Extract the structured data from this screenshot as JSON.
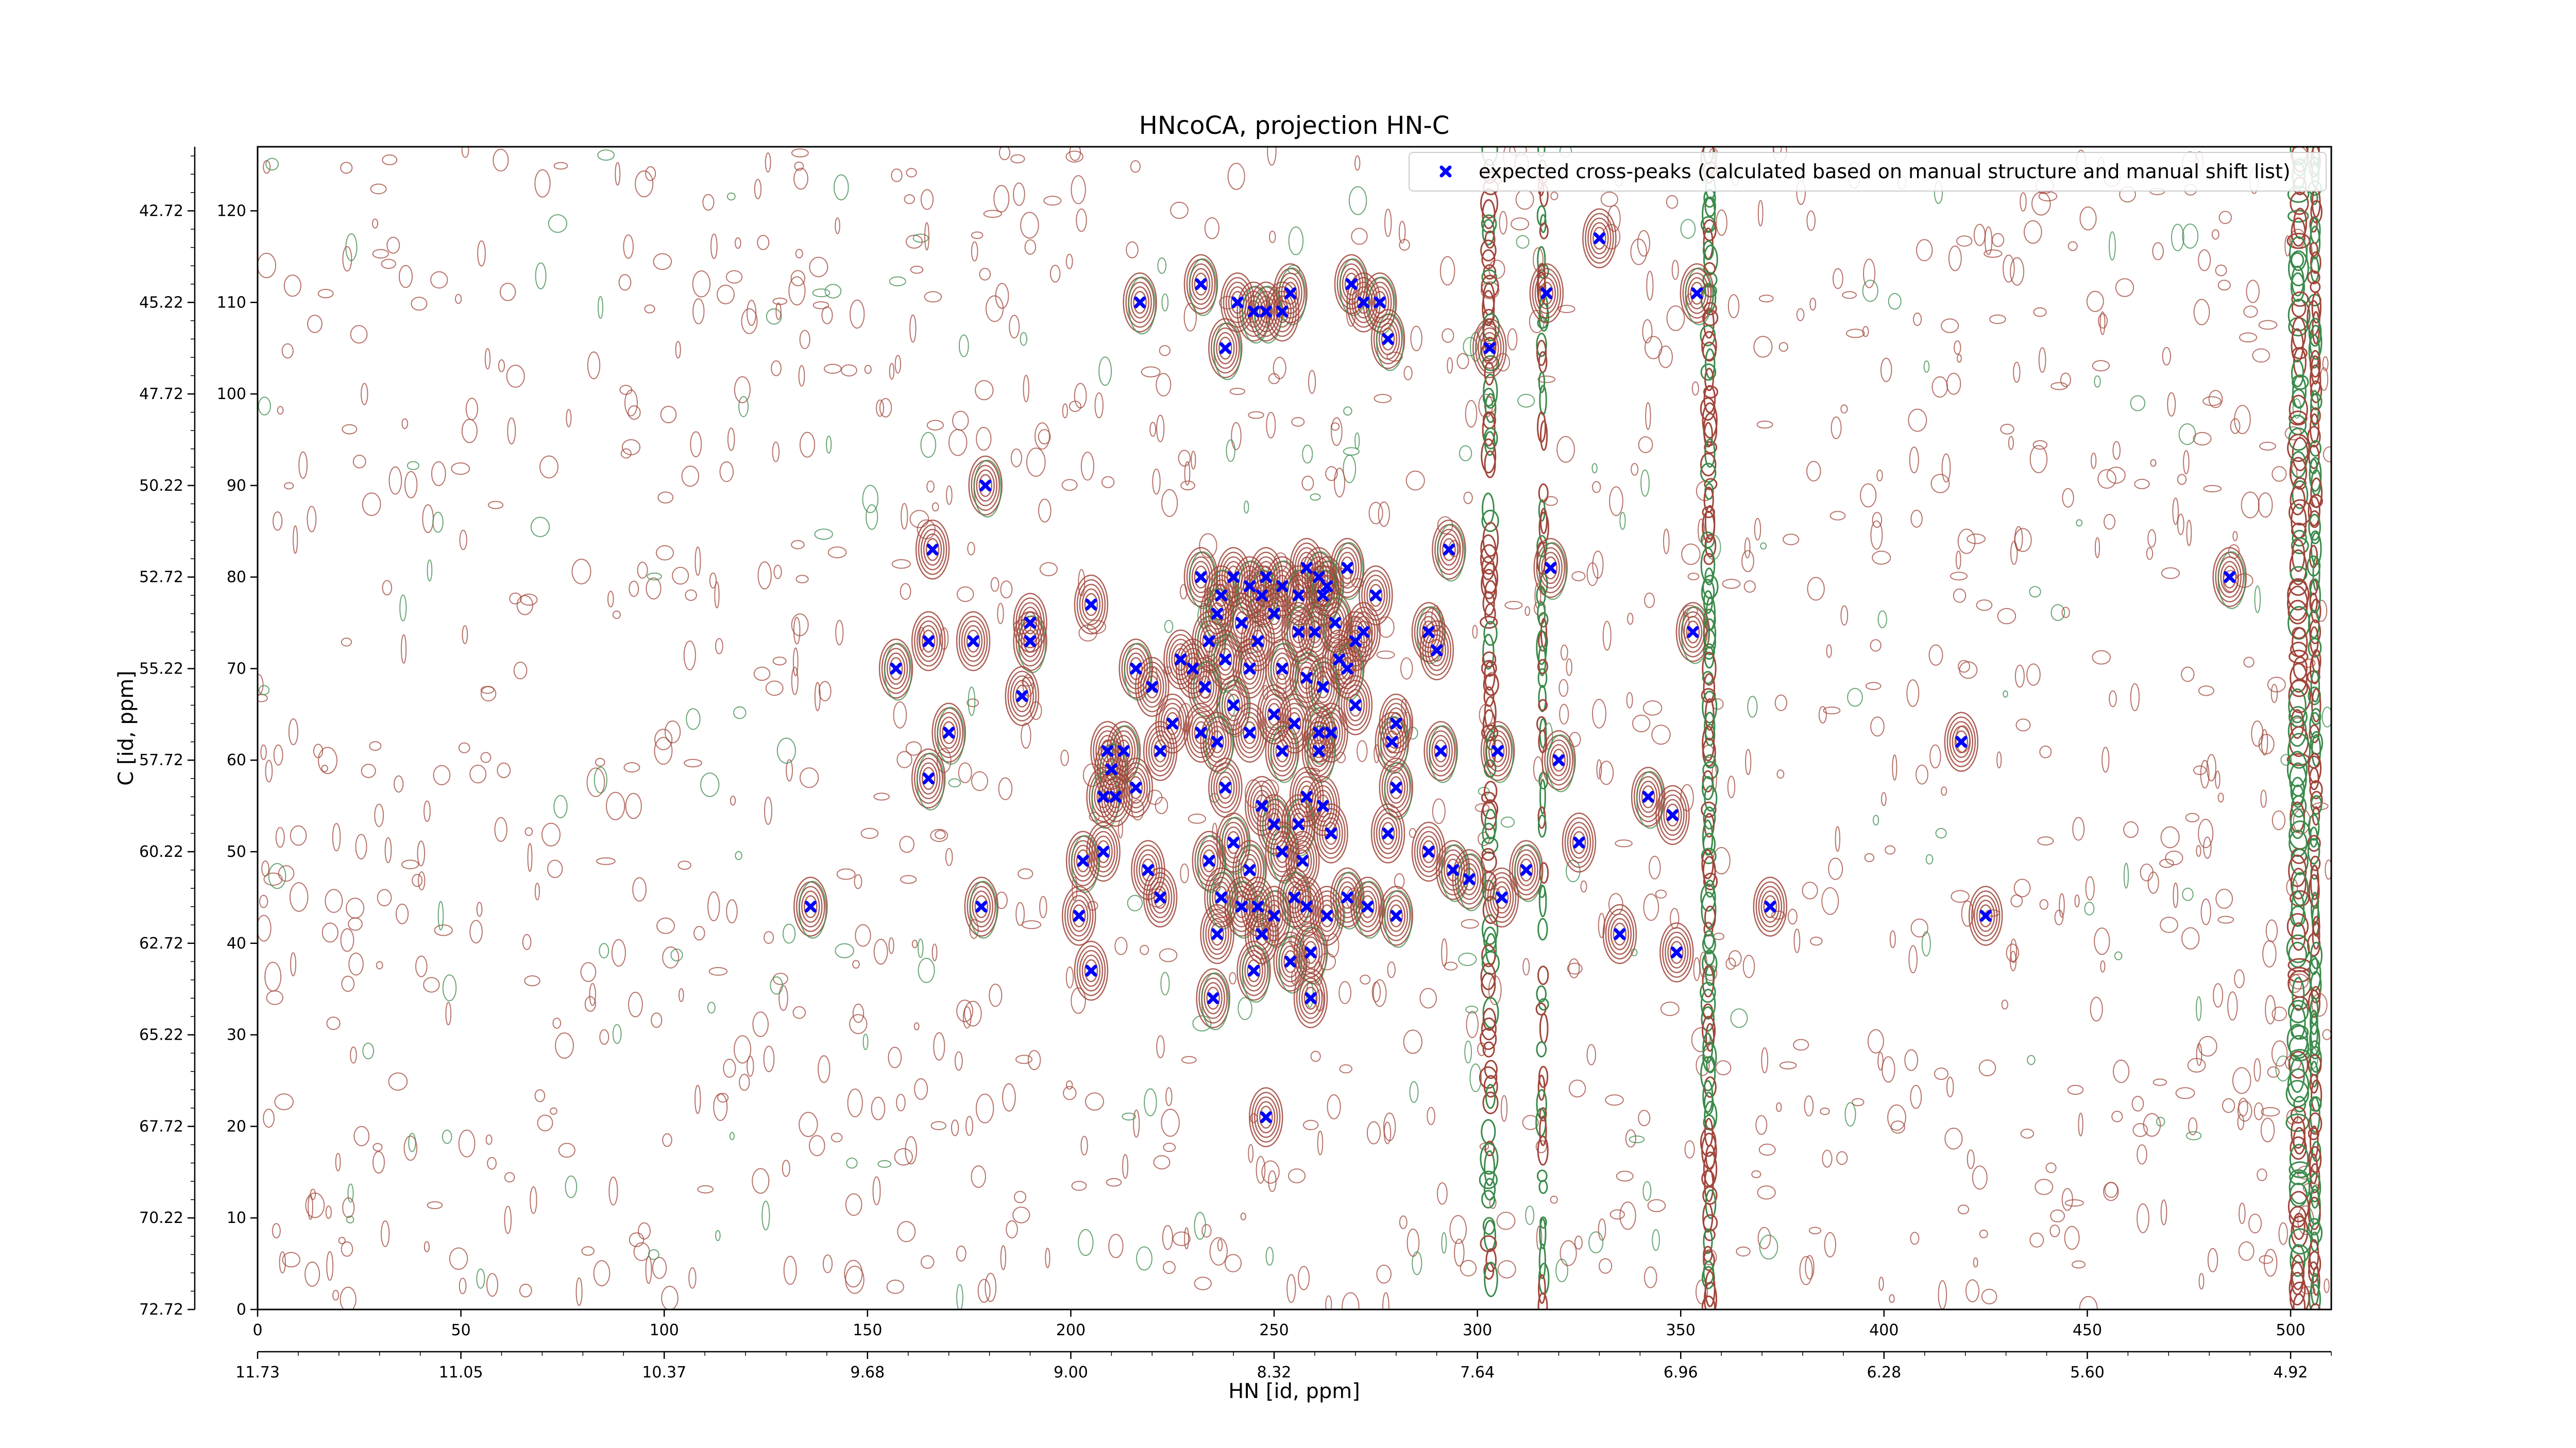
{
  "chart_data": {
    "type": "contour",
    "title": "HNcoCA, projection HN-C",
    "xlabel": "HN [id, ppm]",
    "ylabel": "C [id, ppm]",
    "xlim": [
      0,
      510
    ],
    "ylim": [
      0,
      127
    ],
    "x_ticks": [
      "0",
      "50",
      "100",
      "150",
      "200",
      "250",
      "300",
      "350",
      "400",
      "450",
      "500"
    ],
    "x_tick_values": [
      0,
      50,
      100,
      150,
      200,
      250,
      300,
      350,
      400,
      450,
      500
    ],
    "x2_ticks": [
      "11.73",
      "11.05",
      "10.37",
      "9.68",
      "9.00",
      "8.32",
      "7.64",
      "6.96",
      "6.28",
      "5.60",
      "4.92"
    ],
    "x2_tick_values": [
      0,
      50,
      100,
      150,
      200,
      250,
      300,
      350,
      400,
      450,
      500
    ],
    "y_ticks": [
      "0",
      "10",
      "20",
      "30",
      "40",
      "50",
      "60",
      "70",
      "80",
      "90",
      "100",
      "110",
      "120"
    ],
    "y_tick_values": [
      0,
      10,
      20,
      30,
      40,
      50,
      60,
      70,
      80,
      90,
      100,
      110,
      120
    ],
    "y2_ticks": [
      "72.72",
      "70.22",
      "67.72",
      "65.22",
      "62.72",
      "60.22",
      "57.72",
      "55.22",
      "52.72",
      "50.22",
      "47.72",
      "45.22",
      "42.72"
    ],
    "y2_tick_values": [
      0,
      10,
      20,
      30,
      40,
      50,
      60,
      70,
      80,
      90,
      100,
      110,
      120
    ],
    "legend": {
      "placement": "top-right",
      "entries": [
        {
          "label": "expected cross-peaks (calculated based on manual structure and manual shift list)",
          "color": "#0000ff",
          "marker": "x"
        }
      ]
    },
    "colors": {
      "positive_contour": "#a0453a",
      "negative_contour": "#3a8a4a",
      "peak": "#0000ff"
    },
    "series": [
      {
        "name": "expected cross-peaks (calculated based on manual structure and manual shift list)",
        "points": [
          [
            330,
            117
          ],
          [
            232,
            112
          ],
          [
            269,
            112
          ],
          [
            254,
            111
          ],
          [
            217,
            110
          ],
          [
            241,
            110
          ],
          [
            245,
            109
          ],
          [
            248,
            109
          ],
          [
            252,
            109
          ],
          [
            272,
            110
          ],
          [
            276,
            110
          ],
          [
            317,
            111
          ],
          [
            354,
            111
          ],
          [
            238,
            105
          ],
          [
            278,
            106
          ],
          [
            303,
            105
          ],
          [
            179,
            90
          ],
          [
            166,
            83
          ],
          [
            293,
            83
          ],
          [
            318,
            81
          ],
          [
            232,
            80
          ],
          [
            240,
            80
          ],
          [
            244,
            79
          ],
          [
            248,
            80
          ],
          [
            252,
            79
          ],
          [
            258,
            81
          ],
          [
            261,
            80
          ],
          [
            263,
            79
          ],
          [
            268,
            81
          ],
          [
            237,
            78
          ],
          [
            247,
            78
          ],
          [
            256,
            78
          ],
          [
            262,
            78
          ],
          [
            275,
            78
          ],
          [
            205,
            77
          ],
          [
            236,
            76
          ],
          [
            242,
            75
          ],
          [
            250,
            76
          ],
          [
            256,
            74
          ],
          [
            260,
            74
          ],
          [
            265,
            75
          ],
          [
            270,
            73
          ],
          [
            234,
            73
          ],
          [
            246,
            73
          ],
          [
            272,
            74
          ],
          [
            288,
            74
          ],
          [
            290,
            72
          ],
          [
            353,
            74
          ],
          [
            165,
            73
          ],
          [
            176,
            73
          ],
          [
            190,
            73
          ],
          [
            190,
            75
          ],
          [
            157,
            70
          ],
          [
            227,
            71
          ],
          [
            230,
            70
          ],
          [
            238,
            71
          ],
          [
            244,
            70
          ],
          [
            252,
            70
          ],
          [
            258,
            69
          ],
          [
            262,
            68
          ],
          [
            266,
            71
          ],
          [
            268,
            70
          ],
          [
            216,
            70
          ],
          [
            220,
            68
          ],
          [
            233,
            68
          ],
          [
            188,
            67
          ],
          [
            240,
            66
          ],
          [
            250,
            65
          ],
          [
            255,
            64
          ],
          [
            270,
            66
          ],
          [
            225,
            64
          ],
          [
            232,
            63
          ],
          [
            244,
            63
          ],
          [
            261,
            63
          ],
          [
            264,
            63
          ],
          [
            280,
            64
          ],
          [
            170,
            63
          ],
          [
            209,
            61
          ],
          [
            213,
            61
          ],
          [
            222,
            61
          ],
          [
            236,
            62
          ],
          [
            252,
            61
          ],
          [
            261,
            61
          ],
          [
            279,
            62
          ],
          [
            291,
            61
          ],
          [
            305,
            61
          ],
          [
            320,
            60
          ],
          [
            419,
            62
          ],
          [
            165,
            58
          ],
          [
            210,
            59
          ],
          [
            216,
            57
          ],
          [
            208,
            56
          ],
          [
            211,
            56
          ],
          [
            238,
            57
          ],
          [
            247,
            55
          ],
          [
            258,
            56
          ],
          [
            262,
            55
          ],
          [
            280,
            57
          ],
          [
            342,
            56
          ],
          [
            348,
            54
          ],
          [
            240,
            51
          ],
          [
            250,
            53
          ],
          [
            256,
            53
          ],
          [
            264,
            52
          ],
          [
            278,
            52
          ],
          [
            208,
            50
          ],
          [
            203,
            49
          ],
          [
            219,
            48
          ],
          [
            234,
            49
          ],
          [
            244,
            48
          ],
          [
            252,
            50
          ],
          [
            257,
            49
          ],
          [
            288,
            50
          ],
          [
            294,
            48
          ],
          [
            298,
            47
          ],
          [
            312,
            48
          ],
          [
            325,
            51
          ],
          [
            237,
            45
          ],
          [
            222,
            45
          ],
          [
            242,
            44
          ],
          [
            246,
            44
          ],
          [
            250,
            43
          ],
          [
            255,
            45
          ],
          [
            258,
            44
          ],
          [
            263,
            43
          ],
          [
            268,
            45
          ],
          [
            273,
            44
          ],
          [
            280,
            43
          ],
          [
            202,
            43
          ],
          [
            178,
            44
          ],
          [
            136,
            44
          ],
          [
            306,
            45
          ],
          [
            372,
            44
          ],
          [
            425,
            43
          ],
          [
            236,
            41
          ],
          [
            247,
            41
          ],
          [
            254,
            38
          ],
          [
            245,
            37
          ],
          [
            259,
            39
          ],
          [
            335,
            41
          ],
          [
            349,
            39
          ],
          [
            205,
            37
          ],
          [
            235,
            34
          ],
          [
            259,
            34
          ],
          [
            248,
            21
          ],
          [
            485,
            80
          ]
        ]
      }
    ]
  }
}
